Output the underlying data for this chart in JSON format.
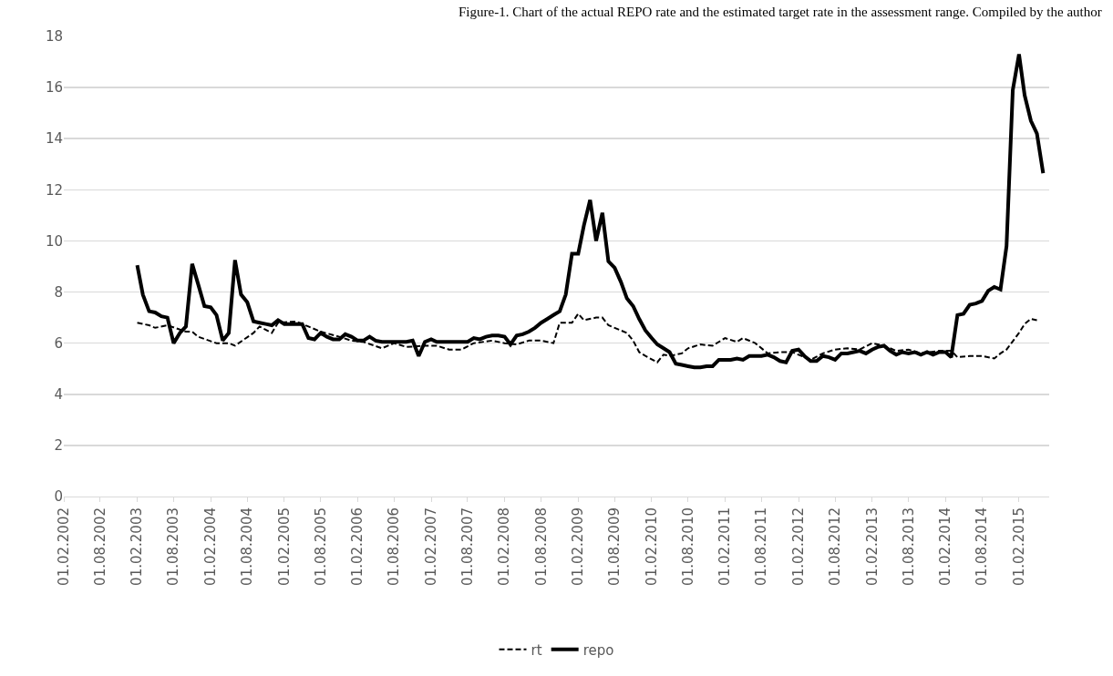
{
  "chart_data": {
    "type": "line",
    "title": "Figure-1. Chart of the actual REPO rate and the estimated target rate in the assessment range. Compiled by the author",
    "xlim": [
      "2002-02-01",
      "2015-07-01"
    ],
    "xticks": [
      {
        "value": "2002-02-01",
        "label": "01.02.2002"
      },
      {
        "value": "2002-08-01",
        "label": "01.08.2002"
      },
      {
        "value": "2003-02-01",
        "label": "01.02.2003"
      },
      {
        "value": "2003-08-01",
        "label": "01.08.2003"
      },
      {
        "value": "2004-02-01",
        "label": "01.02.2004"
      },
      {
        "value": "2004-08-01",
        "label": "01.08.2004"
      },
      {
        "value": "2005-02-01",
        "label": "01.02.2005"
      },
      {
        "value": "2005-08-01",
        "label": "01.08.2005"
      },
      {
        "value": "2006-02-01",
        "label": "01.02.2006"
      },
      {
        "value": "2006-08-01",
        "label": "01.08.2006"
      },
      {
        "value": "2007-02-01",
        "label": "01.02.2007"
      },
      {
        "value": "2007-08-01",
        "label": "01.08.2007"
      },
      {
        "value": "2008-02-01",
        "label": "01.02.2008"
      },
      {
        "value": "2008-08-01",
        "label": "01.08.2008"
      },
      {
        "value": "2009-02-01",
        "label": "01.02.2009"
      },
      {
        "value": "2009-08-01",
        "label": "01.08.2009"
      },
      {
        "value": "2010-02-01",
        "label": "01.02.2010"
      },
      {
        "value": "2010-08-01",
        "label": "01.08.2010"
      },
      {
        "value": "2011-02-01",
        "label": "01.02.2011"
      },
      {
        "value": "2011-08-01",
        "label": "01.08.2011"
      },
      {
        "value": "2012-02-01",
        "label": "01.02.2012"
      },
      {
        "value": "2012-08-01",
        "label": "01.08.2012"
      },
      {
        "value": "2013-02-01",
        "label": "01.02.2013"
      },
      {
        "value": "2013-08-01",
        "label": "01.08.2013"
      },
      {
        "value": "2014-02-01",
        "label": "01.02.2014"
      },
      {
        "value": "2014-08-01",
        "label": "01.08.2014"
      },
      {
        "value": "2015-02-01",
        "label": "01.02.2015"
      }
    ],
    "ylim": [
      0,
      18
    ],
    "yticks": [
      0,
      2,
      4,
      6,
      8,
      10,
      12,
      14,
      16,
      18
    ],
    "grid": "y",
    "legend": "bottom",
    "marker": "none",
    "series": [
      {
        "name": "rt",
        "color": "#000000",
        "line_style": "dashed",
        "x": [
          "2003-02",
          "2003-04",
          "2003-05",
          "2003-07",
          "2003-10",
          "2003-11",
          "2003-12",
          "2004-03",
          "2004-05",
          "2004-06",
          "2004-09",
          "2004-10",
          "2004-12",
          "2005-01",
          "2005-04",
          "2005-06",
          "2005-08",
          "2005-11",
          "2006-01",
          "2006-03",
          "2006-06",
          "2006-08",
          "2006-10",
          "2007-01",
          "2007-03",
          "2007-05",
          "2007-07",
          "2007-09",
          "2007-12",
          "2008-02",
          "2008-04",
          "2008-06",
          "2008-08",
          "2008-10",
          "2008-11",
          "2009-01",
          "2009-02",
          "2009-03",
          "2009-05",
          "2009-06",
          "2009-07",
          "2009-08",
          "2009-10",
          "2009-11",
          "2009-12",
          "2010-01",
          "2010-03",
          "2010-04",
          "2010-05",
          "2010-07",
          "2010-08",
          "2010-10",
          "2010-12",
          "2011-01",
          "2011-02",
          "2011-04",
          "2011-05",
          "2011-07",
          "2011-09",
          "2011-11",
          "2012-01",
          "2012-03",
          "2012-04",
          "2012-06",
          "2012-08",
          "2012-10",
          "2012-12",
          "2013-02",
          "2013-04",
          "2013-06",
          "2013-08",
          "2013-10",
          "2014-01",
          "2014-03",
          "2014-04",
          "2014-06",
          "2014-08",
          "2014-10",
          "2014-11",
          "2014-12",
          "2015-02",
          "2015-03",
          "2015-04",
          "2015-05"
        ],
        "values": [
          6.8,
          6.7,
          6.6,
          6.7,
          6.45,
          6.45,
          6.25,
          6.0,
          6.0,
          5.9,
          6.4,
          6.65,
          6.4,
          6.8,
          6.85,
          6.65,
          6.45,
          6.25,
          6.1,
          6.05,
          5.8,
          6.0,
          5.85,
          5.9,
          5.9,
          5.75,
          5.75,
          6.0,
          6.1,
          6.0,
          5.95,
          6.1,
          6.1,
          6.0,
          6.8,
          6.8,
          7.15,
          6.9,
          7.0,
          7.0,
          6.7,
          6.6,
          6.4,
          6.1,
          5.65,
          5.5,
          5.25,
          5.55,
          5.5,
          5.6,
          5.8,
          5.95,
          5.9,
          6.05,
          6.2,
          6.05,
          6.2,
          6.0,
          5.6,
          5.65,
          5.65,
          5.45,
          5.35,
          5.6,
          5.75,
          5.8,
          5.75,
          6.0,
          5.9,
          5.7,
          5.75,
          5.6,
          5.7,
          5.7,
          5.45,
          5.5,
          5.5,
          5.4,
          5.6,
          5.75,
          6.4,
          6.75,
          6.95,
          6.9
        ]
      },
      {
        "name": "repo",
        "color": "#000000",
        "line_style": "solid",
        "x": [
          "2003-02",
          "2003-03",
          "2003-04",
          "2003-05",
          "2003-06",
          "2003-07",
          "2003-08",
          "2003-09",
          "2003-10",
          "2003-11",
          "2003-12",
          "2004-01",
          "2004-02",
          "2004-03",
          "2004-04",
          "2004-05",
          "2004-06",
          "2004-07",
          "2004-08",
          "2004-09",
          "2004-10",
          "2004-11",
          "2004-12",
          "2005-01",
          "2005-02",
          "2005-03",
          "2005-04",
          "2005-05",
          "2005-06",
          "2005-07",
          "2005-08",
          "2005-09",
          "2005-10",
          "2005-11",
          "2005-12",
          "2006-01",
          "2006-02",
          "2006-03",
          "2006-04",
          "2006-05",
          "2006-06",
          "2006-07",
          "2006-08",
          "2006-09",
          "2006-10",
          "2006-11",
          "2006-12",
          "2007-01",
          "2007-02",
          "2007-03",
          "2007-04",
          "2007-05",
          "2007-06",
          "2007-07",
          "2007-08",
          "2007-09",
          "2007-10",
          "2007-11",
          "2007-12",
          "2008-01",
          "2008-02",
          "2008-03",
          "2008-04",
          "2008-05",
          "2008-06",
          "2008-07",
          "2008-08",
          "2008-09",
          "2008-10",
          "2008-11",
          "2008-12",
          "2009-01",
          "2009-02",
          "2009-03",
          "2009-04",
          "2009-05",
          "2009-06",
          "2009-07",
          "2009-08",
          "2009-09",
          "2009-10",
          "2009-11",
          "2009-12",
          "2010-01",
          "2010-02",
          "2010-03",
          "2010-04",
          "2010-05",
          "2010-06",
          "2010-07",
          "2010-08",
          "2010-09",
          "2010-10",
          "2010-11",
          "2010-12",
          "2011-01",
          "2011-02",
          "2011-03",
          "2011-04",
          "2011-05",
          "2011-06",
          "2011-07",
          "2011-08",
          "2011-09",
          "2011-10",
          "2011-11",
          "2011-12",
          "2012-01",
          "2012-02",
          "2012-03",
          "2012-04",
          "2012-05",
          "2012-06",
          "2012-07",
          "2012-08",
          "2012-09",
          "2012-10",
          "2012-11",
          "2012-12",
          "2013-01",
          "2013-02",
          "2013-03",
          "2013-04",
          "2013-05",
          "2013-06",
          "2013-07",
          "2013-08",
          "2013-09",
          "2013-10",
          "2013-11",
          "2013-12",
          "2014-01",
          "2014-02",
          "2014-03",
          "2014-04",
          "2014-05",
          "2014-06",
          "2014-07",
          "2014-08",
          "2014-09",
          "2014-10",
          "2014-11",
          "2014-12",
          "2015-01",
          "2015-02",
          "2015-03",
          "2015-04",
          "2015-05",
          "2015-06"
        ],
        "values": [
          9.05,
          7.9,
          7.25,
          7.2,
          7.05,
          7.0,
          6.0,
          6.4,
          6.65,
          9.1,
          8.3,
          7.45,
          7.4,
          7.1,
          6.1,
          6.4,
          9.25,
          7.9,
          7.6,
          6.85,
          6.8,
          6.75,
          6.7,
          6.9,
          6.75,
          6.75,
          6.75,
          6.75,
          6.2,
          6.15,
          6.4,
          6.25,
          6.15,
          6.15,
          6.35,
          6.25,
          6.1,
          6.1,
          6.25,
          6.1,
          6.05,
          6.05,
          6.05,
          6.05,
          6.05,
          6.1,
          5.5,
          6.05,
          6.15,
          6.05,
          6.05,
          6.05,
          6.05,
          6.05,
          6.05,
          6.2,
          6.15,
          6.25,
          6.3,
          6.3,
          6.25,
          5.95,
          6.3,
          6.35,
          6.45,
          6.6,
          6.8,
          6.95,
          7.1,
          7.25,
          7.9,
          9.5,
          9.5,
          10.6,
          11.6,
          10.0,
          11.1,
          9.2,
          8.95,
          8.4,
          7.75,
          7.45,
          6.95,
          6.5,
          6.2,
          5.95,
          5.8,
          5.65,
          5.2,
          5.15,
          5.1,
          5.05,
          5.05,
          5.1,
          5.1,
          5.35,
          5.35,
          5.35,
          5.4,
          5.35,
          5.5,
          5.5,
          5.5,
          5.55,
          5.45,
          5.3,
          5.25,
          5.7,
          5.75,
          5.5,
          5.3,
          5.3,
          5.5,
          5.45,
          5.35,
          5.6,
          5.6,
          5.65,
          5.7,
          5.6,
          5.75,
          5.85,
          5.9,
          5.7,
          5.55,
          5.65,
          5.6,
          5.65,
          5.55,
          5.65,
          5.55,
          5.65,
          5.65,
          5.45,
          7.1,
          7.15,
          7.5,
          7.55,
          7.65,
          8.05,
          8.2,
          8.1,
          9.8,
          15.9,
          17.3,
          15.7,
          14.7,
          14.2,
          12.65
        ]
      }
    ]
  }
}
